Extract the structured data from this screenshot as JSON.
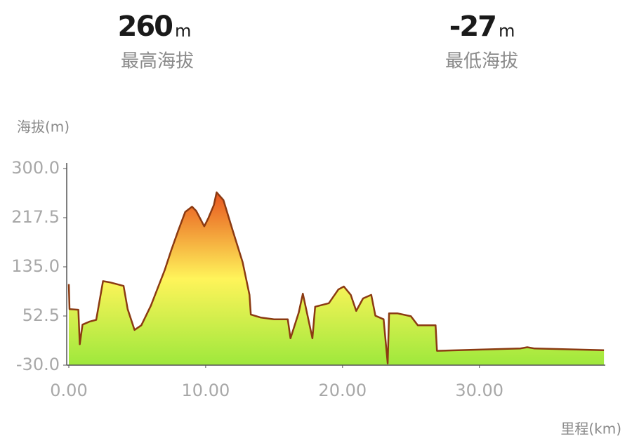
{
  "summary": [
    {
      "value": 260,
      "unit": "m",
      "label": "最高海拔"
    },
    {
      "value": -27,
      "unit": "m",
      "label": "最低海拔"
    }
  ],
  "chart_data": {
    "type": "area",
    "y_label": "海拔(m)",
    "x_label": "里程(km)",
    "x": [
      0,
      0.05,
      0.7,
      0.8,
      1.0,
      1.5,
      2.0,
      2.5,
      3.0,
      4.0,
      4.3,
      4.8,
      5.3,
      6.0,
      7.0,
      7.5,
      8.0,
      8.5,
      9.0,
      9.3,
      9.9,
      10.2,
      10.6,
      10.8,
      11.3,
      12.0,
      12.7,
      13.2,
      13.3,
      14.0,
      15.0,
      16.0,
      16.2,
      16.8,
      17.1,
      17.4,
      17.8,
      18.0,
      19.0,
      19.7,
      20.1,
      20.6,
      21.0,
      21.5,
      22.1,
      22.4,
      23.0,
      23.3,
      23.4,
      24.0,
      25.0,
      25.5,
      26.8,
      26.9,
      30.0,
      33.0,
      33.5,
      34.0,
      39.1
    ],
    "series": [
      {
        "color": "#8b3a12",
        "fill_colors": [
          "#e8551e",
          "#fff45a",
          "#9ee83c"
        ],
        "values": [
          106,
          64,
          63,
          5,
          38,
          43,
          46,
          111,
          109,
          103,
          64,
          29,
          37,
          70,
          129,
          164,
          196,
          227,
          236,
          229,
          203,
          217,
          239,
          260,
          247,
          194,
          143,
          88,
          55,
          50,
          47,
          47,
          15,
          58,
          90,
          58,
          15,
          68,
          74,
          97,
          102,
          88,
          61,
          82,
          88,
          53,
          47,
          -27,
          57,
          57,
          52,
          37,
          37,
          -6,
          -4,
          -2,
          0,
          -2,
          -5
        ]
      }
    ],
    "xlim": [
      0,
      39.2
    ],
    "ylim": [
      -30,
      300
    ],
    "xticks": [
      {
        "value": 0,
        "label": "0.00"
      },
      {
        "value": 10,
        "label": "10.00"
      },
      {
        "value": 20,
        "label": "20.00"
      },
      {
        "value": 30,
        "label": "30.00"
      }
    ],
    "yticks": [
      {
        "value": -30,
        "label": "-30.0"
      },
      {
        "value": 52.5,
        "label": "52.5"
      },
      {
        "value": 135,
        "label": "135.0"
      },
      {
        "value": 217.5,
        "label": "217.5"
      },
      {
        "value": 300,
        "label": "300.0"
      }
    ],
    "grid": false
  }
}
